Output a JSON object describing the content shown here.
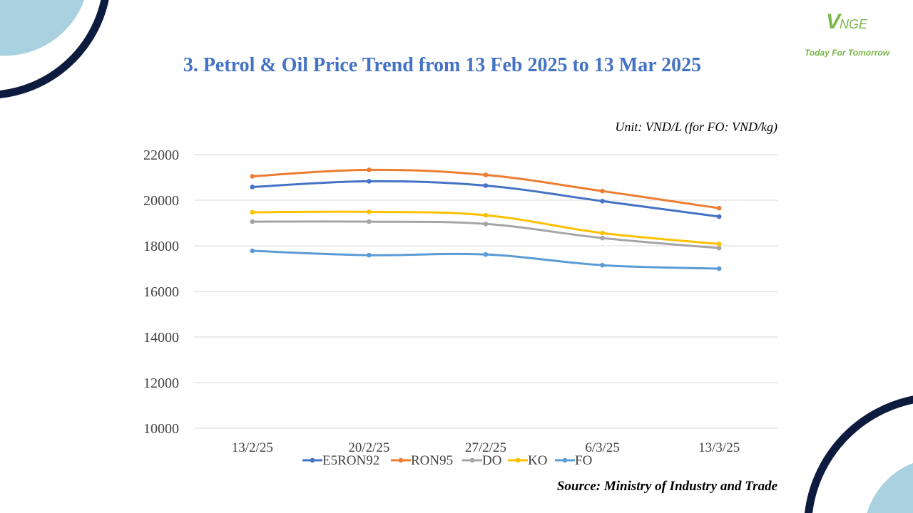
{
  "logo": {
    "mark_big": "V",
    "mark_small": "NGE",
    "tagline": "Today For Tomorrow"
  },
  "title": "3. Petrol & Oil Price Trend from 13 Feb 2025 to 13 Mar 2025",
  "unit_note": "Unit: VND/L (for FO: VND/kg)",
  "source_note": "Source: Ministry of Industry and Trade",
  "colors": {
    "title": "#4472c4",
    "logo": "#7ab648",
    "navy_arc": "#0d1b3e",
    "light_blue_arc": "#a9d1e0",
    "grid": "#d9d9d9"
  },
  "chart_data": {
    "type": "line",
    "categories": [
      "13/2/25",
      "20/2/25",
      "27/2/25",
      "6/3/25",
      "13/3/25"
    ],
    "ylim": [
      10000,
      22000
    ],
    "yticks": [
      22000,
      20000,
      18000,
      16000,
      14000,
      12000,
      10000
    ],
    "grid": true,
    "legend": "bottom",
    "series": [
      {
        "name": "E5RON92",
        "color": "#4472c4",
        "values": [
          20580,
          20830,
          20640,
          19960,
          19280
        ]
      },
      {
        "name": "RON95",
        "color": "#ed7d31",
        "values": [
          21050,
          21330,
          21110,
          20400,
          19650
        ]
      },
      {
        "name": "DO",
        "color": "#a5a5a5",
        "values": [
          19060,
          19060,
          18960,
          18340,
          17900
        ]
      },
      {
        "name": "KO",
        "color": "#ffc000",
        "values": [
          19470,
          19490,
          19340,
          18560,
          18080
        ]
      },
      {
        "name": "FO",
        "color": "#5b9bd5",
        "values": [
          17780,
          17590,
          17620,
          17150,
          17000
        ]
      }
    ]
  }
}
